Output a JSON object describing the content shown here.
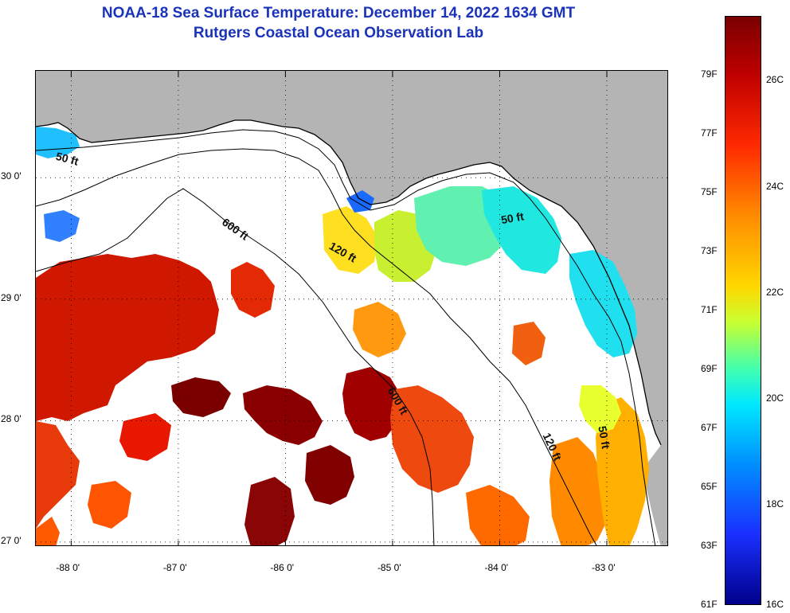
{
  "header": {
    "title_line1": "NOAA-18 Sea Surface Temperature:  December 14, 2022 1634 GMT",
    "title_line2": "Rutgers Coastal Ocean Observation Lab"
  },
  "map": {
    "lat_labels": [
      {
        "text": "30 0'",
        "lat": 30.0
      },
      {
        "text": "29 0'",
        "lat": 29.0
      },
      {
        "text": "28 0'",
        "lat": 28.0
      },
      {
        "text": "27 0'",
        "lat": 27.0
      }
    ],
    "lon_labels": [
      {
        "text": "-88 0'",
        "lon": -88.0
      },
      {
        "text": "-87 0'",
        "lon": -87.0
      },
      {
        "text": "-86 0'",
        "lon": -86.0
      },
      {
        "text": "-85 0'",
        "lon": -85.0
      },
      {
        "text": "-84 0'",
        "lon": -84.0
      },
      {
        "text": "-83 0'",
        "lon": -83.0
      }
    ],
    "lon_range": [
      -88.33,
      -82.42
    ],
    "lat_range": [
      26.96,
      30.88
    ],
    "contour_labels": [
      {
        "text": "50 ft",
        "lon": -88.15,
        "lat": 30.15,
        "rot": 15
      },
      {
        "text": "600 ft",
        "lon": -86.6,
        "lat": 29.62,
        "rot": 35
      },
      {
        "text": "120 ft",
        "lon": -85.6,
        "lat": 29.42,
        "rot": 30
      },
      {
        "text": "50 ft",
        "lon": -83.98,
        "lat": 29.62,
        "rot": -10
      },
      {
        "text": "600 ft",
        "lon": -85.05,
        "lat": 28.25,
        "rot": 60
      },
      {
        "text": "120 ft",
        "lon": -83.6,
        "lat": 27.88,
        "rot": 65
      },
      {
        "text": "50 ft",
        "lon": -83.08,
        "lat": 27.95,
        "rot": 80
      }
    ]
  },
  "colorbar": {
    "f_labels": [
      "79F",
      "77F",
      "75F",
      "73F",
      "71F",
      "69F",
      "67F",
      "65F",
      "63F",
      "61F"
    ],
    "c_labels": [
      "26C",
      "24C",
      "22C",
      "20C",
      "18C",
      "16C"
    ],
    "colors": [
      "#7a0000",
      "#c00000",
      "#ff2a00",
      "#ff8c00",
      "#ffd800",
      "#c8ff30",
      "#40ffb0",
      "#00e8ff",
      "#0090ff",
      "#1a30ff",
      "#00008a"
    ]
  },
  "legend_colors": {
    "land": "#b4b4b4",
    "no_data": "#ffffff",
    "warm_red": "#d01800",
    "dark_red": "#7a0000",
    "orange": "#ff6a00",
    "cyan": "#20e8e0",
    "green_yellow": "#b8f040"
  }
}
